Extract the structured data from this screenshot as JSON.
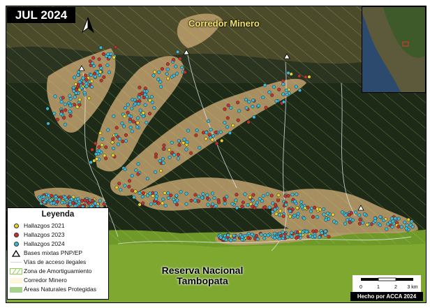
{
  "map_title": "JUL 2024",
  "labels": {
    "corridor": "Corredor Minero",
    "reserve_line1": "Reserva Nacional",
    "reserve_line2": "Tambopata"
  },
  "legend": {
    "title": "Leyenda",
    "items": [
      {
        "label": "Hallazgos 2021",
        "symbol": "dot",
        "color": "#e6d22e"
      },
      {
        "label": "Hallazgos 2023",
        "symbol": "dot",
        "color": "#c8302a"
      },
      {
        "label": "Hallazgos 2024",
        "symbol": "dot",
        "color": "#3bb9d6"
      },
      {
        "label": "Bases mixtas PNP/EP",
        "symbol": "triangle-icon"
      },
      {
        "label": "Vías de acceso ilegales",
        "symbol": "line",
        "color": "#e8ecf0"
      },
      {
        "label": "Zona de Amortiguamiento",
        "symbol": "hatch",
        "color": "#8fcf4f"
      },
      {
        "label": "Corredor Minero",
        "symbol": "fill",
        "color": "#fbf6dc"
      },
      {
        "label": "Áreas Naturales Protegidas",
        "symbol": "fill",
        "color": "#a8d08d"
      }
    ]
  },
  "scale_bar": {
    "ticks": [
      "0",
      "1",
      "2",
      "3 km"
    ]
  },
  "credit": "Hecho por ACCA 2024",
  "north_arrow": "north-arrow-icon"
}
